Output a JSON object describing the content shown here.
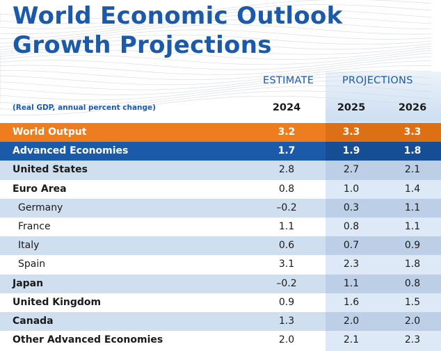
{
  "title": "World Economic Outlook\nGrowth Projections",
  "header": {
    "estimate_label": "ESTIMATE",
    "projections_label": "PROJECTIONS",
    "unit_note": "(Real GDP, annual percent change)",
    "years": [
      "2024",
      "2025",
      "2026"
    ]
  },
  "colors": {
    "brand_blue": "#1b5aa8",
    "highlight_orange": "#ee7d1f",
    "row_light": "#cfdff0",
    "projection_column": "#dde9f7"
  },
  "chart_data": {
    "type": "table",
    "title": "World Economic Outlook Growth Projections",
    "subtitle": "(Real GDP, annual percent change)",
    "columns": [
      "2024",
      "2025",
      "2026"
    ],
    "column_groups": [
      {
        "label": "ESTIMATE",
        "columns": [
          "2024"
        ]
      },
      {
        "label": "PROJECTIONS",
        "columns": [
          "2025",
          "2026"
        ]
      }
    ],
    "rows": [
      {
        "name": "World Output",
        "values": [
          "3.2",
          "3.3",
          "3.3"
        ],
        "style": "hl-orange",
        "indent": false
      },
      {
        "name": "Advanced Economies",
        "values": [
          "1.7",
          "1.9",
          "1.8"
        ],
        "style": "hl-blue",
        "indent": false
      },
      {
        "name": "United States",
        "values": [
          "2.8",
          "2.7",
          "2.1"
        ],
        "style": "light",
        "indent": false
      },
      {
        "name": "Euro Area",
        "values": [
          "0.8",
          "1.0",
          "1.4"
        ],
        "style": "white",
        "indent": false
      },
      {
        "name": "Germany",
        "values": [
          "–0.2",
          "0.3",
          "1.1"
        ],
        "style": "light",
        "indent": true
      },
      {
        "name": "France",
        "values": [
          "1.1",
          "0.8",
          "1.1"
        ],
        "style": "white",
        "indent": true
      },
      {
        "name": "Italy",
        "values": [
          "0.6",
          "0.7",
          "0.9"
        ],
        "style": "light",
        "indent": true
      },
      {
        "name": "Spain",
        "values": [
          "3.1",
          "2.3",
          "1.8"
        ],
        "style": "white",
        "indent": true
      },
      {
        "name": "Japan",
        "values": [
          "–0.2",
          "1.1",
          "0.8"
        ],
        "style": "light",
        "indent": false
      },
      {
        "name": "United Kingdom",
        "values": [
          "0.9",
          "1.6",
          "1.5"
        ],
        "style": "white",
        "indent": false
      },
      {
        "name": "Canada",
        "values": [
          "1.3",
          "2.0",
          "2.0"
        ],
        "style": "light",
        "indent": false
      },
      {
        "name": "Other Advanced Economies",
        "values": [
          "2.0",
          "2.1",
          "2.3"
        ],
        "style": "white",
        "indent": false
      }
    ]
  }
}
